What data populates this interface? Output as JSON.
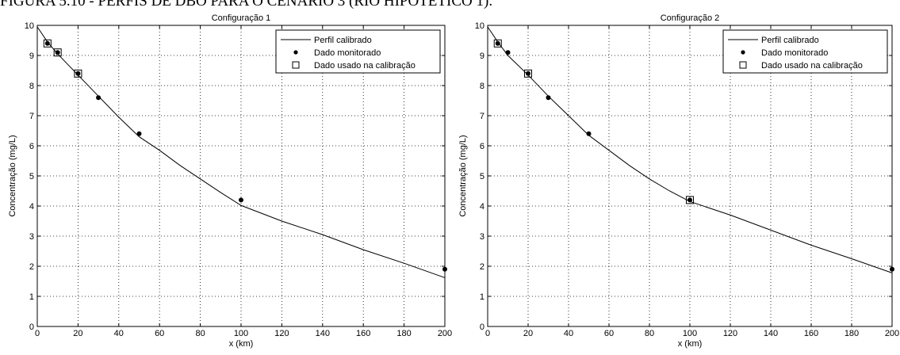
{
  "caption": "FIGURA 5.10 - PERFIS DE DBO PARA O CENÁRIO 3 (RIO HIPOTÉTICO 1).",
  "chart_data": [
    {
      "type": "line",
      "title": "Configuração 1",
      "xlabel": "x (km)",
      "ylabel": "Concentração (mg/L)",
      "xlim": [
        0,
        200
      ],
      "ylim": [
        0,
        10
      ],
      "xticks": [
        0,
        20,
        40,
        60,
        80,
        100,
        120,
        140,
        160,
        180,
        200
      ],
      "yticks": [
        0,
        1,
        2,
        3,
        4,
        5,
        6,
        7,
        8,
        9,
        10
      ],
      "grid": true,
      "legend_position": "top-right",
      "legend": [
        "Perfil calibrado",
        "Dado monitorado",
        "Dado usado na calibração"
      ],
      "series": [
        {
          "name": "Perfil calibrado",
          "style": "line",
          "x": [
            0,
            5,
            10,
            20,
            30,
            40,
            50,
            60,
            70,
            80,
            90,
            100,
            120,
            140,
            160,
            180,
            200
          ],
          "y": [
            9.95,
            9.45,
            9.05,
            8.35,
            7.65,
            6.95,
            6.3,
            5.85,
            5.35,
            4.9,
            4.45,
            4.02,
            3.5,
            3.05,
            2.55,
            2.1,
            1.62
          ]
        },
        {
          "name": "Dado monitorado",
          "style": "marker-dot",
          "x": [
            5,
            10,
            20,
            30,
            50,
            100,
            200
          ],
          "y": [
            9.4,
            9.1,
            8.4,
            7.6,
            6.4,
            4.2,
            1.9
          ]
        },
        {
          "name": "Dado usado na calibração",
          "style": "marker-square",
          "x": [
            5,
            10,
            20
          ],
          "y": [
            9.4,
            9.1,
            8.4
          ]
        }
      ]
    },
    {
      "type": "line",
      "title": "Configuração 2",
      "xlabel": "x (km)",
      "ylabel": "Concentração (mg/L)",
      "xlim": [
        0,
        200
      ],
      "ylim": [
        0,
        10
      ],
      "xticks": [
        0,
        20,
        40,
        60,
        80,
        100,
        120,
        140,
        160,
        180,
        200
      ],
      "yticks": [
        0,
        1,
        2,
        3,
        4,
        5,
        6,
        7,
        8,
        9,
        10
      ],
      "grid": true,
      "legend_position": "top-right",
      "legend": [
        "Perfil calibrado",
        "Dado monitorado",
        "Dado usado na calibração"
      ],
      "series": [
        {
          "name": "Perfil calibrado",
          "style": "line",
          "x": [
            0,
            5,
            10,
            20,
            30,
            40,
            50,
            60,
            70,
            80,
            90,
            100,
            120,
            140,
            160,
            180,
            200
          ],
          "y": [
            9.95,
            9.45,
            9.0,
            8.35,
            7.65,
            7.0,
            6.35,
            5.85,
            5.35,
            4.9,
            4.5,
            4.15,
            3.7,
            3.2,
            2.7,
            2.25,
            1.78
          ]
        },
        {
          "name": "Dado monitorado",
          "style": "marker-dot",
          "x": [
            5,
            10,
            20,
            30,
            50,
            100,
            200
          ],
          "y": [
            9.4,
            9.1,
            8.4,
            7.6,
            6.4,
            4.2,
            1.9
          ]
        },
        {
          "name": "Dado usado na calibração",
          "style": "marker-square",
          "x": [
            5,
            20,
            100
          ],
          "y": [
            9.4,
            8.4,
            4.2
          ]
        }
      ]
    }
  ]
}
